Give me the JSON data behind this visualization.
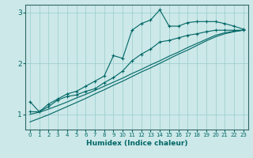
{
  "xlabel": "Humidex (Indice chaleur)",
  "bg_color": "#cce8e8",
  "grid_color": "#99cccc",
  "line_color": "#006666",
  "spine_color": "#336666",
  "xlim": [
    -0.5,
    23.5
  ],
  "ylim": [
    0.7,
    3.15
  ],
  "yticks": [
    1,
    2,
    3
  ],
  "xticks": [
    0,
    1,
    2,
    3,
    4,
    5,
    6,
    7,
    8,
    9,
    10,
    11,
    12,
    13,
    14,
    15,
    16,
    17,
    18,
    19,
    20,
    21,
    22,
    23
  ],
  "line1_x": [
    0,
    1,
    2,
    3,
    4,
    5,
    6,
    7,
    8,
    9,
    10,
    11,
    12,
    13,
    14,
    15,
    16,
    17,
    18,
    19,
    20,
    21,
    22,
    23
  ],
  "line1_y": [
    1.25,
    1.05,
    1.2,
    1.3,
    1.4,
    1.45,
    1.55,
    1.65,
    1.75,
    2.15,
    2.1,
    2.65,
    2.78,
    2.85,
    3.05,
    2.73,
    2.73,
    2.8,
    2.82,
    2.82,
    2.82,
    2.78,
    2.73,
    2.67
  ],
  "line2_x": [
    0,
    1,
    2,
    3,
    4,
    5,
    6,
    7,
    8,
    9,
    10,
    11,
    12,
    13,
    14,
    15,
    16,
    17,
    18,
    19,
    20,
    21,
    22,
    23
  ],
  "line2_y": [
    1.05,
    1.05,
    1.15,
    1.28,
    1.35,
    1.38,
    1.45,
    1.5,
    1.62,
    1.72,
    1.85,
    2.05,
    2.18,
    2.28,
    2.42,
    2.45,
    2.5,
    2.55,
    2.58,
    2.62,
    2.65,
    2.65,
    2.65,
    2.65
  ],
  "line3_x": [
    0,
    1,
    2,
    3,
    4,
    5,
    6,
    7,
    8,
    9,
    10,
    11,
    12,
    13,
    14,
    15,
    16,
    17,
    18,
    19,
    20,
    21,
    22,
    23
  ],
  "line3_y": [
    1.0,
    1.04,
    1.1,
    1.17,
    1.24,
    1.32,
    1.39,
    1.47,
    1.55,
    1.63,
    1.71,
    1.8,
    1.88,
    1.97,
    2.05,
    2.14,
    2.22,
    2.31,
    2.39,
    2.47,
    2.55,
    2.6,
    2.63,
    2.65
  ],
  "line4_x": [
    0,
    1,
    2,
    3,
    4,
    5,
    6,
    7,
    8,
    9,
    10,
    11,
    12,
    13,
    14,
    15,
    16,
    17,
    18,
    19,
    20,
    21,
    22,
    23
  ],
  "line4_y": [
    0.85,
    0.92,
    0.99,
    1.07,
    1.15,
    1.23,
    1.31,
    1.4,
    1.48,
    1.57,
    1.65,
    1.74,
    1.83,
    1.91,
    2.0,
    2.09,
    2.18,
    2.26,
    2.35,
    2.44,
    2.52,
    2.58,
    2.62,
    2.65
  ]
}
